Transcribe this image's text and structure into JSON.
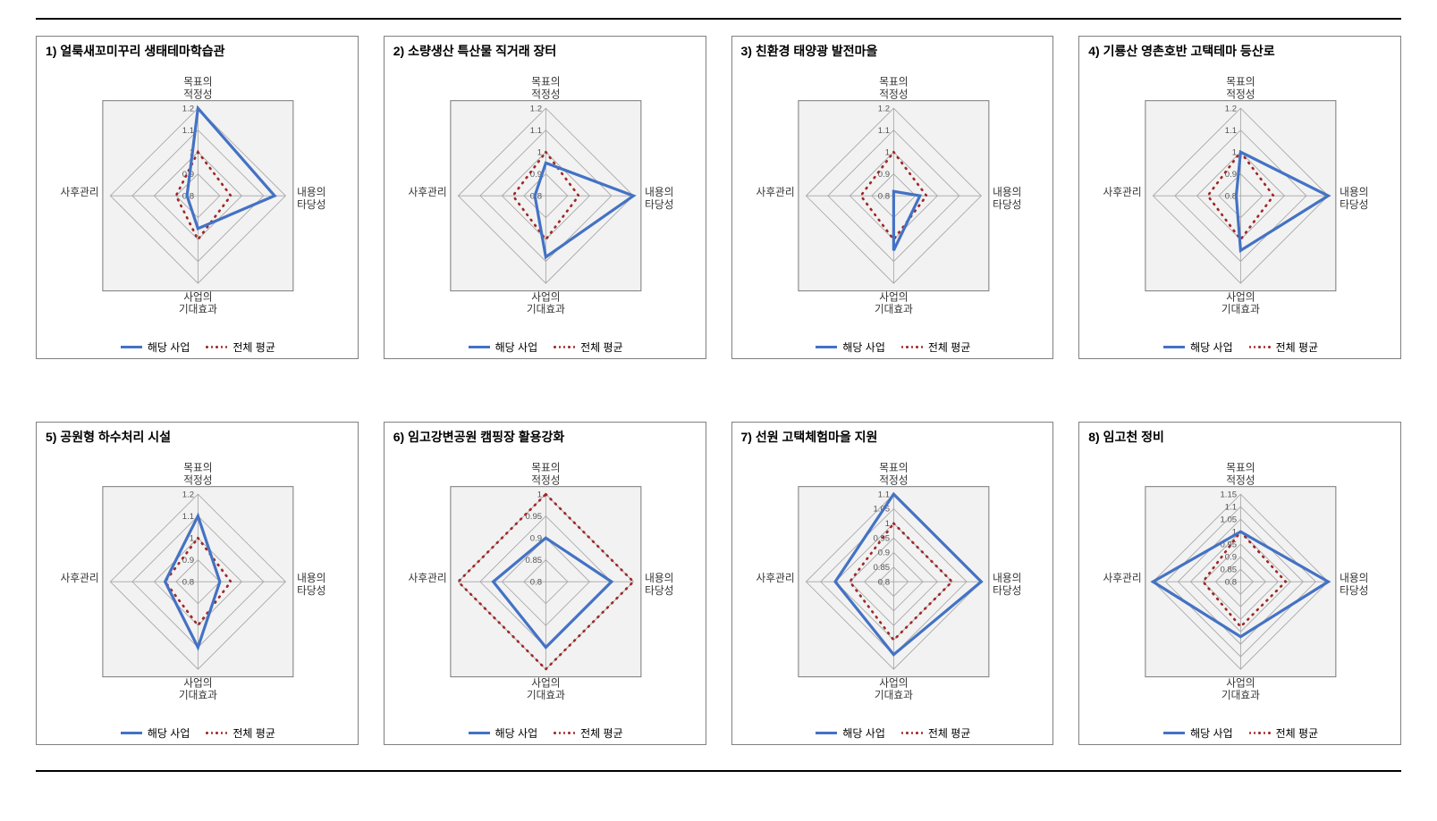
{
  "layout": {
    "columns": 4,
    "rows": 2,
    "card_border_color": "#808080",
    "page_rule_color": "#000000",
    "background_color": "#ffffff",
    "title_fontsize": 14,
    "title_fontweight": 600,
    "axis_label_fontsize": 11,
    "tick_label_fontsize": 9
  },
  "axes_common": {
    "labels": [
      "목표의\n적정성",
      "내용의\n타당성",
      "사업의\n기대효과",
      "사후관리"
    ],
    "label_color": "#333333",
    "grid_color": "#a6a6a6",
    "plot_box_border": "#808080",
    "plot_box_fill": "#f2f2f2",
    "series_solid_color": "#4472c4",
    "series_solid_width": 3,
    "series_dash_color": "#a02828",
    "series_dash_width": 2.5,
    "series_dash_pattern": "1 6"
  },
  "legend": {
    "series1": "해당 사업",
    "series2": "전체 평균"
  },
  "charts": [
    {
      "title": "1) 얼룩새꼬미꾸리 생태테마학습관",
      "type": "radar",
      "min": 0.8,
      "max": 1.2,
      "ticks": [
        0.8,
        0.9,
        1.0,
        1.1,
        1.2
      ],
      "project": [
        1.2,
        1.15,
        0.95,
        0.85
      ],
      "average": [
        1.0,
        0.95,
        1.0,
        0.9
      ]
    },
    {
      "title": "2) 소량생산 특산물 직거래 장터",
      "type": "radar",
      "min": 0.8,
      "max": 1.2,
      "ticks": [
        0.8,
        0.9,
        1.0,
        1.1,
        1.2
      ],
      "project": [
        0.95,
        1.2,
        1.08,
        0.85
      ],
      "average": [
        1.0,
        0.95,
        1.0,
        0.95
      ]
    },
    {
      "title": "3) 친환경 태양광 발전마을",
      "type": "radar",
      "min": 0.8,
      "max": 1.2,
      "ticks": [
        0.8,
        0.9,
        1.0,
        1.1,
        1.2
      ],
      "project": [
        0.82,
        0.92,
        1.05,
        0.8
      ],
      "average": [
        1.0,
        0.95,
        1.0,
        0.95
      ]
    },
    {
      "title": "4) 기룡산 영촌호반 고택테마 등산로",
      "type": "radar",
      "min": 0.8,
      "max": 1.2,
      "ticks": [
        0.8,
        0.9,
        1.0,
        1.1,
        1.2
      ],
      "project": [
        1.0,
        1.2,
        1.05,
        0.82
      ],
      "average": [
        1.0,
        0.95,
        1.0,
        0.95
      ]
    },
    {
      "title": "5) 공원형 하수처리 시설",
      "type": "radar",
      "min": 0.8,
      "max": 1.2,
      "ticks": [
        0.8,
        0.9,
        1.0,
        1.1,
        1.2
      ],
      "project": [
        1.1,
        0.9,
        1.1,
        0.95
      ],
      "average": [
        1.0,
        0.95,
        1.0,
        0.95
      ]
    },
    {
      "title": "6) 임고강변공원 캠핑장 활용강화",
      "type": "radar",
      "min": 0.8,
      "max": 1.0,
      "ticks": [
        0.8,
        0.85,
        0.9,
        0.95,
        1.0
      ],
      "project": [
        0.9,
        0.95,
        0.95,
        0.92
      ],
      "average": [
        1.0,
        1.0,
        1.0,
        1.0
      ]
    },
    {
      "title": "7) 선원 고택체험마을 지원",
      "type": "radar",
      "min": 0.8,
      "max": 1.1,
      "ticks": [
        0.8,
        0.85,
        0.9,
        0.95,
        1.0,
        1.05,
        1.1
      ],
      "project": [
        1.1,
        1.1,
        1.05,
        1.0
      ],
      "average": [
        1.0,
        1.0,
        1.0,
        0.95
      ]
    },
    {
      "title": "8) 임고천 정비",
      "type": "radar",
      "min": 0.8,
      "max": 1.15,
      "ticks": [
        0.8,
        0.85,
        0.9,
        0.95,
        1.0,
        1.05,
        1.1,
        1.15
      ],
      "project": [
        1.0,
        1.15,
        1.02,
        1.15
      ],
      "average": [
        1.0,
        0.98,
        0.98,
        0.95
      ]
    }
  ]
}
